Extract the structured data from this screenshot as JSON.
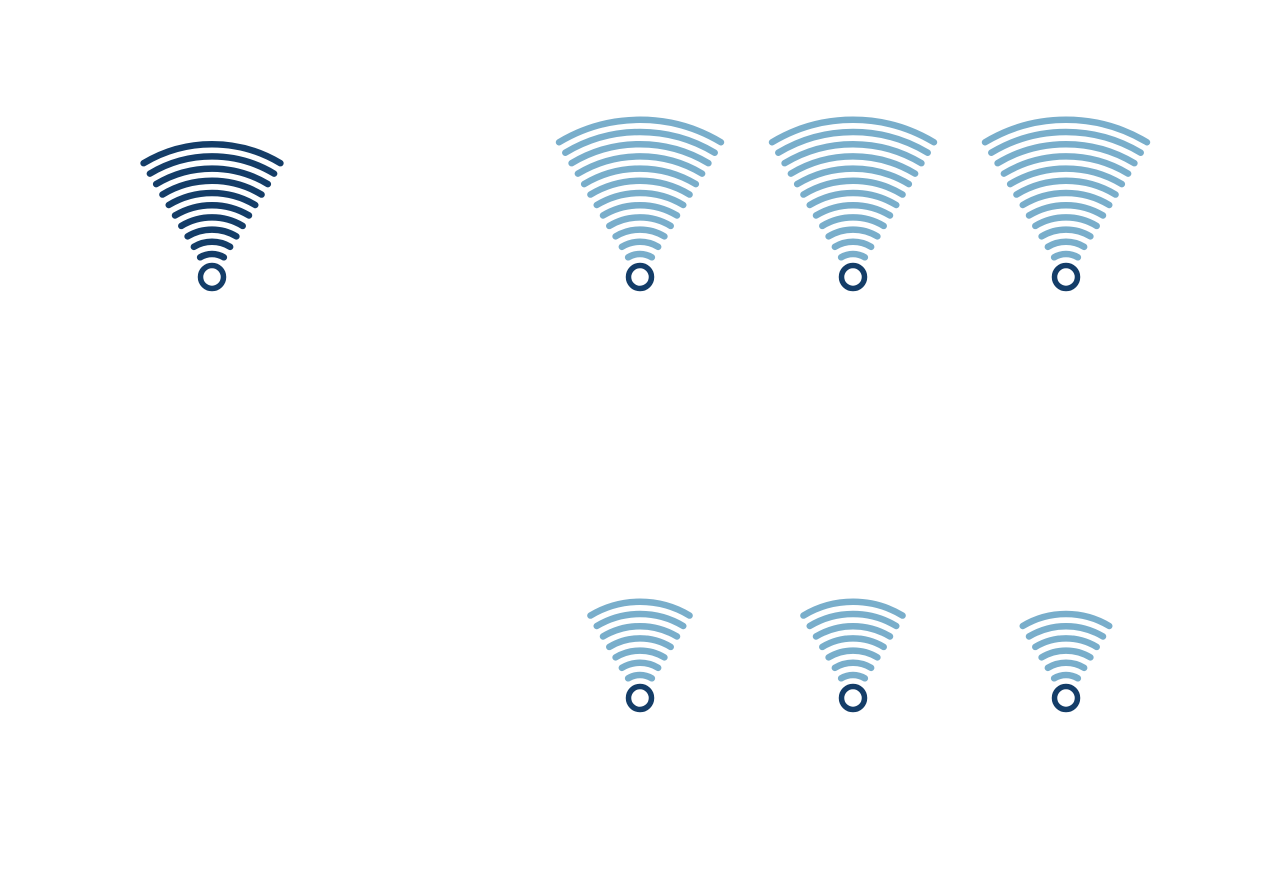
{
  "colors": {
    "background": "#ffffff",
    "primary": "#143d68",
    "secondary": "#79aecb"
  },
  "signals": [
    {
      "id": "top-left",
      "rings": 10,
      "active": true
    },
    {
      "id": "top-mid-1",
      "rings": 12,
      "active": false
    },
    {
      "id": "top-mid-2",
      "rings": 12,
      "active": false
    },
    {
      "id": "top-right",
      "rings": 12,
      "active": false
    },
    {
      "id": "bottom-mid-1",
      "rings": 7,
      "active": false
    },
    {
      "id": "bottom-mid-2",
      "rings": 7,
      "active": false
    },
    {
      "id": "bottom-right",
      "rings": 6,
      "active": false
    }
  ]
}
